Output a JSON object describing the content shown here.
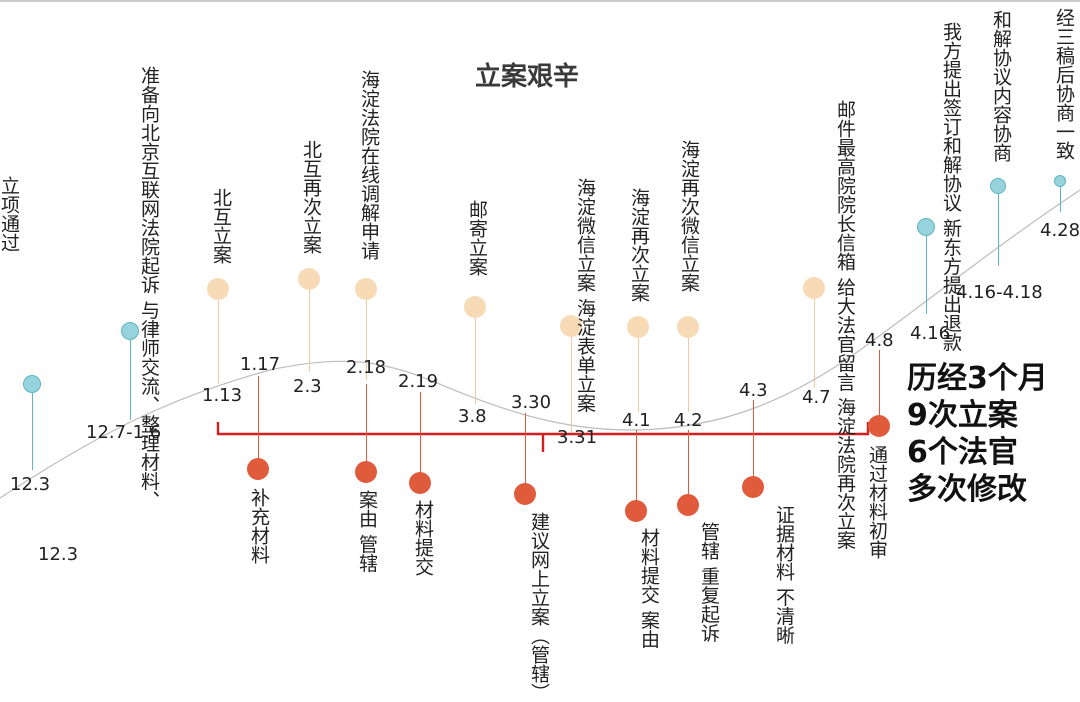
{
  "title": "立案艰辛",
  "summary": [
    "历经3个月",
    "9次立案",
    "6个法官",
    "多次修改"
  ],
  "colors": {
    "teal": "#96d3dc",
    "teal_stroke": "#5fb5c2",
    "peach": "#f7dbb6",
    "orange": "#e05b3c",
    "red_line": "#d31f1f",
    "curve": "#bdbdbd"
  },
  "upper_events": [
    {
      "label": "立项通过",
      "date": "12.3",
      "color": "teal"
    },
    {
      "label": "准备向北京互联网法院起诉\n与律师交流、整理材料、",
      "date": "12.7-1.6",
      "color": "teal"
    },
    {
      "label": "北互立案",
      "date": "1.13",
      "color": "peach"
    },
    {
      "label": "北互再次立案",
      "date": "2.3",
      "color": "peach"
    },
    {
      "label": "海淀法院在线调解申请",
      "date": "2.18",
      "color": "peach"
    },
    {
      "label": "邮寄立案",
      "date": "3.8",
      "color": "peach"
    },
    {
      "label": "海淀微信立案\n海淀表单立案",
      "date": "3.31",
      "color": "peach"
    },
    {
      "label": "海淀再次立案",
      "date": "4.1",
      "color": "peach"
    },
    {
      "label": "海淀再次微信立案",
      "date": "4.2",
      "color": "peach"
    },
    {
      "label": "邮件最高院院长信箱\n给大法官留言\n海淀法院再次立案",
      "date": "4.7",
      "color": "peach"
    },
    {
      "label": "我方提出签订和解协议\n新东方提出退款",
      "date": "4.16",
      "color": "teal"
    },
    {
      "label": "和解协议内容协商",
      "date": "4.16-4.18",
      "color": "teal"
    },
    {
      "label": "经三稿后协商一致",
      "date": "4.28",
      "color": "teal"
    }
  ],
  "lower_events": [
    {
      "label": "补充材料",
      "date": "1.17"
    },
    {
      "label": "案由 管辖",
      "date": "2.18"
    },
    {
      "label": "材料提交",
      "date": "2.19"
    },
    {
      "label": "建议网上立案（管辖）",
      "date": "3.30"
    },
    {
      "label": "材料提交 案由",
      "date": "4.1"
    },
    {
      "label": "管辖 重复起诉",
      "date": "4.2"
    },
    {
      "label": "证据材料 不清晰",
      "date": "4.3"
    },
    {
      "label": "通过材料初审",
      "date": "4.8"
    }
  ],
  "extra_date": "12.3"
}
